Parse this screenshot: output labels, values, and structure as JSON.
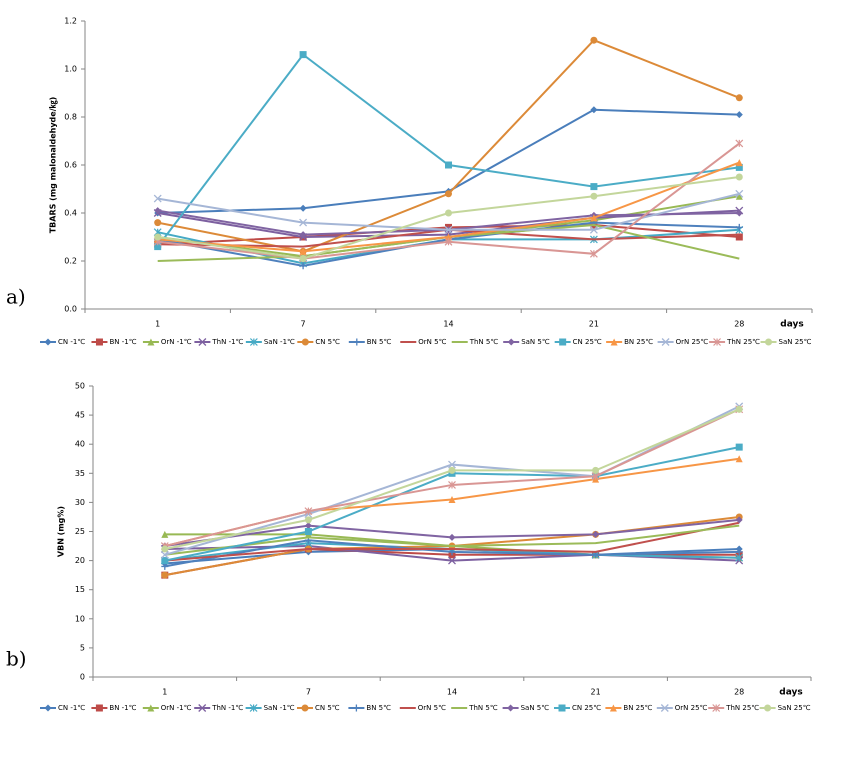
{
  "chart_data": [
    {
      "type": "line",
      "panel_label": "a)",
      "ylabel": "TBARS (mg malonaldehyde/㎏)",
      "xlabel": "days",
      "legend": "bottom",
      "categories": [
        "1",
        "7",
        "14",
        "21",
        "28"
      ],
      "ylim": [
        0,
        1.2
      ],
      "yticks": [
        {
          "value": 0,
          "label": "0.0"
        },
        0.2,
        0.4,
        0.6,
        0.8,
        {
          "value": 1,
          "label": "1.0"
        },
        1.2
      ],
      "series": [
        {
          "name": "CN -1℃",
          "color": "#4a7ebb",
          "marker": "diamond",
          "values": [
            0.4,
            0.42,
            0.49,
            0.83,
            0.81
          ]
        },
        {
          "name": "BN -1℃",
          "color": "#be4b48",
          "marker": "square",
          "values": [
            0.27,
            0.3,
            0.34,
            0.35,
            0.3
          ]
        },
        {
          "name": "OrN -1℃",
          "color": "#98b954",
          "marker": "triangle",
          "values": [
            0.3,
            0.22,
            0.3,
            0.37,
            0.47
          ]
        },
        {
          "name": "ThN -1℃",
          "color": "#7d60a0",
          "marker": "x",
          "values": [
            0.4,
            0.3,
            0.31,
            0.38,
            0.41
          ]
        },
        {
          "name": "SaN -1℃",
          "color": "#46aac5",
          "marker": "star",
          "values": [
            0.32,
            0.19,
            0.29,
            0.29,
            0.33
          ]
        },
        {
          "name": "CN 5℃",
          "color": "#dc8a38",
          "marker": "circle",
          "values": [
            0.36,
            0.24,
            0.48,
            1.12,
            0.88
          ]
        },
        {
          "name": "BN 5℃",
          "color": "#4f81bd",
          "marker": "plus",
          "values": [
            0.29,
            0.18,
            0.29,
            0.36,
            0.34
          ]
        },
        {
          "name": "OrN 5℃",
          "color": "#c0504d",
          "marker": "none",
          "values": [
            0.27,
            0.26,
            0.33,
            0.29,
            0.31
          ]
        },
        {
          "name": "ThN 5℃",
          "color": "#9bbb59",
          "marker": "none",
          "values": [
            0.2,
            0.22,
            0.3,
            0.35,
            0.21
          ]
        },
        {
          "name": "SaN 5℃",
          "color": "#8064a2",
          "marker": "diamond",
          "values": [
            0.41,
            0.31,
            0.33,
            0.39,
            0.4
          ]
        },
        {
          "name": "CN 25℃",
          "color": "#4bacc6",
          "marker": "square",
          "values": [
            0.26,
            1.06,
            0.6,
            0.51,
            0.59
          ]
        },
        {
          "name": "BN 25℃",
          "color": "#f79646",
          "marker": "triangle",
          "values": [
            0.29,
            0.24,
            0.3,
            0.38,
            0.61
          ]
        },
        {
          "name": "OrN 25℃",
          "color": "#a5b6d6",
          "marker": "x",
          "values": [
            0.46,
            0.36,
            0.33,
            0.33,
            0.48
          ]
        },
        {
          "name": "ThN 25℃",
          "color": "#d99694",
          "marker": "star",
          "values": [
            0.28,
            0.21,
            0.28,
            0.23,
            0.69
          ]
        },
        {
          "name": "SaN 25℃",
          "color": "#c3d69b",
          "marker": "circle",
          "values": [
            0.3,
            0.21,
            0.4,
            0.47,
            0.55
          ]
        }
      ]
    },
    {
      "type": "line",
      "panel_label": "b)",
      "ylabel": "VBN (mg%)",
      "xlabel": "days",
      "legend": "bottom",
      "categories": [
        "1",
        "7",
        "14",
        "21",
        "28"
      ],
      "ylim": [
        0,
        50
      ],
      "yticks": [
        0,
        5,
        10,
        15,
        20,
        25,
        30,
        35,
        40,
        45,
        50
      ],
      "series": [
        {
          "name": "CN -1℃",
          "color": "#4a7ebb",
          "marker": "diamond",
          "values": [
            19.5,
            21.5,
            22,
            21,
            22
          ]
        },
        {
          "name": "BN -1℃",
          "color": "#be4b48",
          "marker": "square",
          "values": [
            17.5,
            22,
            21,
            21,
            21
          ]
        },
        {
          "name": "OrN -1℃",
          "color": "#98b954",
          "marker": "triangle",
          "values": [
            24.5,
            24.5,
            22.5,
            21,
            20.5
          ]
        },
        {
          "name": "ThN -1℃",
          "color": "#7d60a0",
          "marker": "x",
          "values": [
            22,
            22.5,
            20,
            21,
            20
          ]
        },
        {
          "name": "SaN -1℃",
          "color": "#46aac5",
          "marker": "star",
          "values": [
            20,
            23,
            22,
            21,
            20.5
          ]
        },
        {
          "name": "CN 5℃",
          "color": "#dc8a38",
          "marker": "circle",
          "values": [
            17.5,
            22,
            22.5,
            24.5,
            27.5
          ]
        },
        {
          "name": "BN 5℃",
          "color": "#4f81bd",
          "marker": "plus",
          "values": [
            19,
            23.5,
            21.5,
            21,
            21.5
          ]
        },
        {
          "name": "OrN 5℃",
          "color": "#c0504d",
          "marker": "none",
          "values": [
            20,
            22,
            22,
            21.5,
            26.5
          ]
        },
        {
          "name": "ThN 5℃",
          "color": "#9bbb59",
          "marker": "none",
          "values": [
            21,
            24,
            22.5,
            23,
            26
          ]
        },
        {
          "name": "SaN 5℃",
          "color": "#8064a2",
          "marker": "diamond",
          "values": [
            22.5,
            26,
            24,
            24.5,
            27
          ]
        },
        {
          "name": "CN 25℃",
          "color": "#4bacc6",
          "marker": "square",
          "values": [
            20,
            25,
            35,
            34.5,
            39.5
          ]
        },
        {
          "name": "BN 25℃",
          "color": "#f79646",
          "marker": "triangle",
          "values": [
            22.5,
            28.5,
            30.5,
            34,
            37.5
          ]
        },
        {
          "name": "OrN 25℃",
          "color": "#a5b6d6",
          "marker": "x",
          "values": [
            21,
            28,
            36.5,
            34.5,
            46.5
          ]
        },
        {
          "name": "ThN 25℃",
          "color": "#d99694",
          "marker": "star",
          "values": [
            22.5,
            28.5,
            33,
            34.5,
            46
          ]
        },
        {
          "name": "SaN 25℃",
          "color": "#c3d69b",
          "marker": "circle",
          "values": [
            22,
            27,
            35.5,
            35.5,
            46
          ]
        }
      ]
    }
  ]
}
